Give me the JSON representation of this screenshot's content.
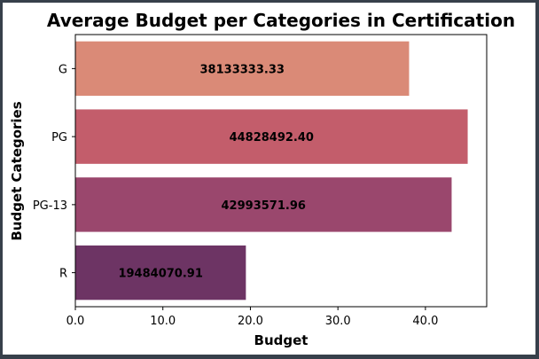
{
  "chart_data": {
    "type": "bar",
    "orientation": "horizontal",
    "title": "Average Budget per Categories in Certification",
    "xlabel": "Budget",
    "ylabel": "Budget Categories",
    "categories": [
      "G",
      "PG",
      "PG-13",
      "R"
    ],
    "values": [
      38133333.33,
      44828492.4,
      42993571.96,
      19484070.91
    ],
    "value_labels": [
      "38133333.33",
      "44828492.40",
      "42993571.96",
      "19484070.91"
    ],
    "xlim": [
      0,
      47.0
    ],
    "x_ticks": [
      0,
      10,
      20,
      30,
      40
    ],
    "x_tick_labels": [
      "0.0",
      "10.0",
      "20.0",
      "30.0",
      "40.0"
    ],
    "x_scale_note": "axis in millions",
    "bar_colors": [
      "#da8a77",
      "#c35d6b",
      "#9a476d",
      "#6d3464"
    ],
    "grid": false,
    "legend": "none"
  }
}
